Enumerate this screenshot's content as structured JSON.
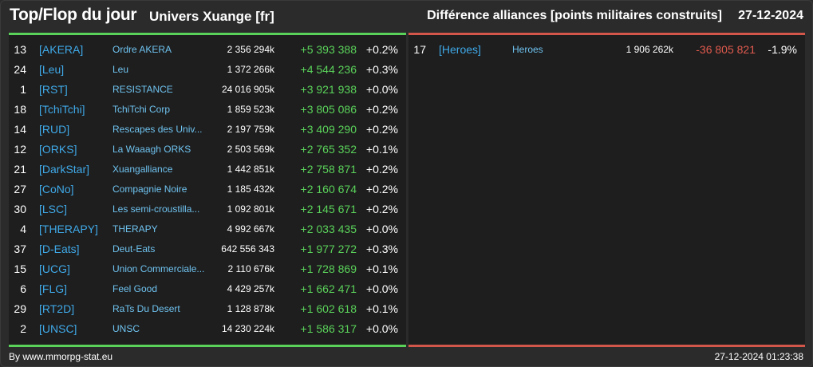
{
  "header": {
    "title": "Top/Flop du jour",
    "universe": "Univers Xuange [fr]",
    "subtitle": "Différence alliances [points militaires construits]",
    "date": "27-12-2024"
  },
  "colors": {
    "positive": "#5ad25a",
    "negative": "#e05a4e",
    "tag": "#3fa9e8"
  },
  "top": [
    {
      "rank": "13",
      "tag": "[AKERA]",
      "name": "Ordre AKERA",
      "points": "2 356 294k",
      "diff": "+5 393 388",
      "pct": "+0.2%"
    },
    {
      "rank": "24",
      "tag": "[Leu]",
      "name": "Leu",
      "points": "1 372 266k",
      "diff": "+4 544 236",
      "pct": "+0.3%"
    },
    {
      "rank": "1",
      "tag": "[RST]",
      "name": "RESISTANCE",
      "points": "24 016 905k",
      "diff": "+3 921 938",
      "pct": "+0.0%"
    },
    {
      "rank": "18",
      "tag": "[TchiTchi]",
      "name": "TchiTchi Corp",
      "points": "1 859 523k",
      "diff": "+3 805 086",
      "pct": "+0.2%"
    },
    {
      "rank": "14",
      "tag": "[RUD]",
      "name": "Rescapes des Univ...",
      "points": "2 197 759k",
      "diff": "+3 409 290",
      "pct": "+0.2%"
    },
    {
      "rank": "12",
      "tag": "[ORKS]",
      "name": "La Waaagh ORKS",
      "points": "2 503 569k",
      "diff": "+2 765 352",
      "pct": "+0.1%"
    },
    {
      "rank": "21",
      "tag": "[DarkStar]",
      "name": "Xuangalliance",
      "points": "1 442 851k",
      "diff": "+2 758 871",
      "pct": "+0.2%"
    },
    {
      "rank": "27",
      "tag": "[CoNo]",
      "name": "Compagnie Noire",
      "points": "1 185 432k",
      "diff": "+2 160 674",
      "pct": "+0.2%"
    },
    {
      "rank": "30",
      "tag": "[LSC]",
      "name": "Les semi-croustilla...",
      "points": "1 092 801k",
      "diff": "+2 145 671",
      "pct": "+0.2%"
    },
    {
      "rank": "4",
      "tag": "[THERAPY]",
      "name": "THERAPY",
      "points": "4 992 667k",
      "diff": "+2 033 435",
      "pct": "+0.0%"
    },
    {
      "rank": "37",
      "tag": "[D-Eats]",
      "name": "Deut-Eats",
      "points": "642 556 343",
      "diff": "+1 977 272",
      "pct": "+0.3%"
    },
    {
      "rank": "15",
      "tag": "[UCG]",
      "name": "Union Commerciale...",
      "points": "2 110 676k",
      "diff": "+1 728 869",
      "pct": "+0.1%"
    },
    {
      "rank": "6",
      "tag": "[FLG]",
      "name": "Feel Good",
      "points": "4 429 257k",
      "diff": "+1 662 471",
      "pct": "+0.0%"
    },
    {
      "rank": "29",
      "tag": "[RT2D]",
      "name": "RaTs Du Desert",
      "points": "1 128 878k",
      "diff": "+1 602 618",
      "pct": "+0.1%"
    },
    {
      "rank": "2",
      "tag": "[UNSC]",
      "name": "UNSC",
      "points": "14 230 224k",
      "diff": "+1 586 317",
      "pct": "+0.0%"
    }
  ],
  "flop": [
    {
      "rank": "17",
      "tag": "[Heroes]",
      "name": "Heroes",
      "points": "1 906 262k",
      "diff": "-36 805 821",
      "pct": "-1.9%"
    }
  ],
  "footer": {
    "source": "By www.mmorpg-stat.eu",
    "timestamp": "27-12-2024 01:23:38"
  }
}
